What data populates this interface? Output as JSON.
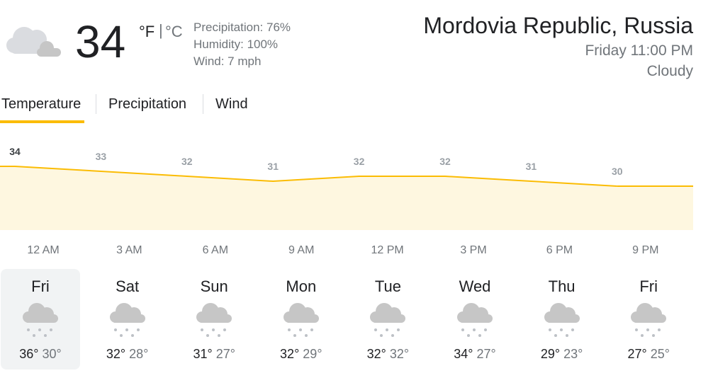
{
  "current": {
    "temp": 34,
    "unit_f": "°F",
    "separator": "|",
    "unit_c": "°C",
    "precipitation": "Precipitation: 76%",
    "humidity": "Humidity: 100%",
    "wind": "Wind: 7 mph"
  },
  "location": {
    "name": "Mordovia Republic, Russia",
    "time": "Friday 11:00 PM",
    "condition": "Cloudy"
  },
  "tabs": [
    "Temperature",
    "Precipitation",
    "Wind"
  ],
  "chart": {
    "x": [
      "12 AM",
      "3 AM",
      "6 AM",
      "9 AM",
      "12 PM",
      "3 PM",
      "6 PM",
      "9 PM"
    ],
    "values": [
      34,
      33,
      32,
      31,
      32,
      32,
      31,
      30
    ]
  },
  "days": [
    {
      "name": "Fri",
      "high": "36°",
      "low": "30°"
    },
    {
      "name": "Sat",
      "high": "32°",
      "low": "28°"
    },
    {
      "name": "Sun",
      "high": "31°",
      "low": "27°"
    },
    {
      "name": "Mon",
      "high": "32°",
      "low": "29°"
    },
    {
      "name": "Tue",
      "high": "32°",
      "low": "32°"
    },
    {
      "name": "Wed",
      "high": "34°",
      "low": "27°"
    },
    {
      "name": "Thu",
      "high": "29°",
      "low": "23°"
    },
    {
      "name": "Fri",
      "high": "27°",
      "low": "25°"
    }
  ]
}
